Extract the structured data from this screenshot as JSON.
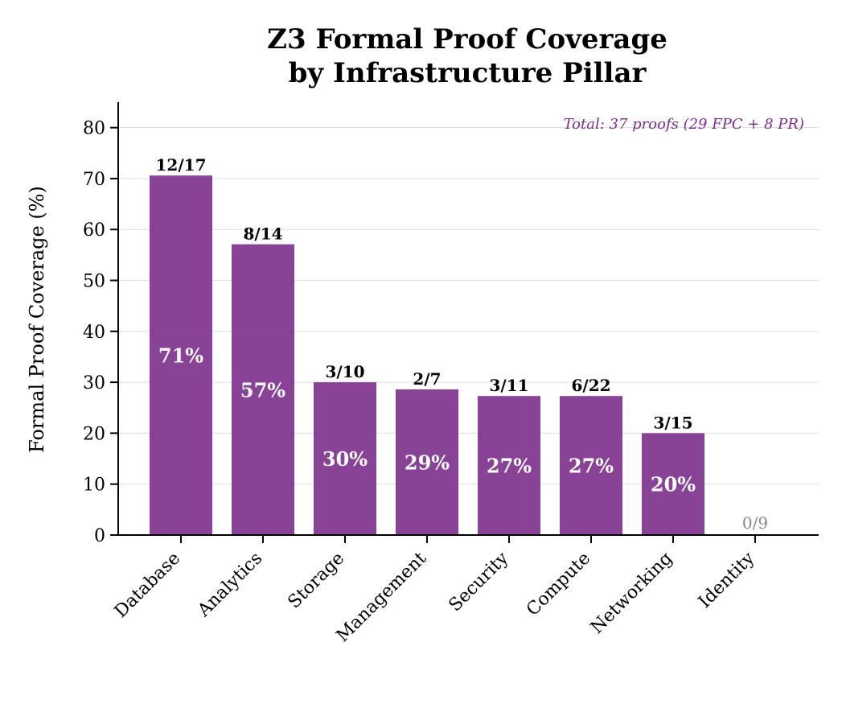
{
  "chart_data": {
    "type": "bar",
    "title_line1": "Z3 Formal Proof Coverage",
    "title_line2": "by Infrastructure Pillar",
    "xlabel": "",
    "ylabel": "Formal Proof Coverage (%)",
    "ylim": [
      0,
      85
    ],
    "yticks": [
      0,
      10,
      20,
      30,
      40,
      50,
      60,
      70,
      80
    ],
    "grid": "horizontal",
    "bar_color": "#7b2d8b",
    "annotation_color": "#7b2d8b",
    "annotation": "Total: 37 proofs (29 FPC + 8 PR)",
    "categories": [
      "Database",
      "Analytics",
      "Storage",
      "Management",
      "Security",
      "Compute",
      "Networking",
      "Identity"
    ],
    "values": [
      70.6,
      57.1,
      30.0,
      28.6,
      27.3,
      27.3,
      20.0,
      0
    ],
    "pct_labels": [
      "71%",
      "57%",
      "30%",
      "29%",
      "27%",
      "27%",
      "20%",
      ""
    ],
    "count_labels": [
      "12/17",
      "8/14",
      "3/10",
      "2/7",
      "3/11",
      "6/22",
      "3/15",
      "0/9"
    ]
  }
}
